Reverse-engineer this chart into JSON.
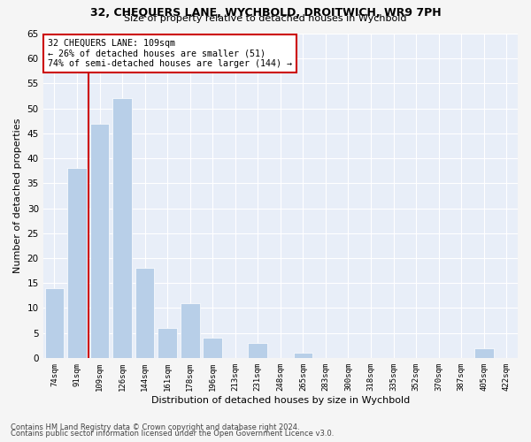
{
  "title": "32, CHEQUERS LANE, WYCHBOLD, DROITWICH, WR9 7PH",
  "subtitle": "Size of property relative to detached houses in Wychbold",
  "xlabel_dist": "Distribution of detached houses by size in Wychbold",
  "ylabel": "Number of detached properties",
  "categories": [
    "74sqm",
    "91sqm",
    "109sqm",
    "126sqm",
    "144sqm",
    "161sqm",
    "178sqm",
    "196sqm",
    "213sqm",
    "231sqm",
    "248sqm",
    "265sqm",
    "283sqm",
    "300sqm",
    "318sqm",
    "335sqm",
    "352sqm",
    "370sqm",
    "387sqm",
    "405sqm",
    "422sqm"
  ],
  "values": [
    14,
    38,
    47,
    52,
    18,
    6,
    11,
    4,
    0,
    3,
    0,
    1,
    0,
    0,
    0,
    0,
    0,
    0,
    0,
    2,
    0
  ],
  "bar_color": "#b8cfe8",
  "highlight_index": 2,
  "highlight_line_color": "#cc0000",
  "annotation_line1": "32 CHEQUERS LANE: 109sqm",
  "annotation_line2": "← 26% of detached houses are smaller (51)",
  "annotation_line3": "74% of semi-detached houses are larger (144) →",
  "annotation_box_color": "#ffffff",
  "annotation_box_edge": "#cc0000",
  "ylim": [
    0,
    65
  ],
  "yticks": [
    0,
    5,
    10,
    15,
    20,
    25,
    30,
    35,
    40,
    45,
    50,
    55,
    60,
    65
  ],
  "background_color": "#e8eef8",
  "grid_color": "#ffffff",
  "fig_bg_color": "#f5f5f5",
  "footer_line1": "Contains HM Land Registry data © Crown copyright and database right 2024.",
  "footer_line2": "Contains public sector information licensed under the Open Government Licence v3.0."
}
